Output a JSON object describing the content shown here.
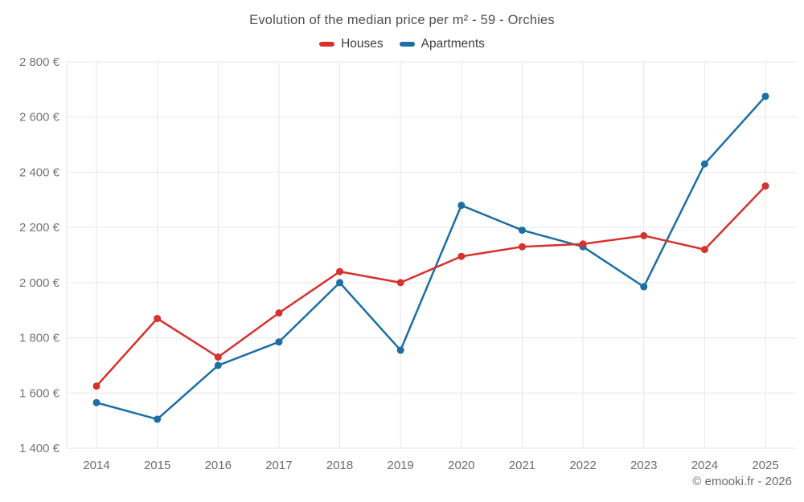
{
  "header": {
    "title": "Evolution of the median price per m² - 59 - Orchies"
  },
  "legend": {
    "items": [
      {
        "label": "Houses",
        "color": "#d7312e"
      },
      {
        "label": "Apartments",
        "color": "#1c6ea4"
      }
    ]
  },
  "footer": {
    "copyright": "© emooki.fr - 2026"
  },
  "chart_data": {
    "type": "line",
    "title": "Evolution of the median price per m² - 59 - Orchies",
    "categories": [
      "2014",
      "2015",
      "2016",
      "2017",
      "2018",
      "2019",
      "2020",
      "2021",
      "2022",
      "2023",
      "2024",
      "2025"
    ],
    "series": [
      {
        "name": "Houses",
        "color": "#d7312e",
        "values": [
          1625,
          1870,
          1730,
          1890,
          2040,
          2000,
          2095,
          2130,
          2140,
          2170,
          2120,
          2350
        ]
      },
      {
        "name": "Apartments",
        "color": "#1c6ea4",
        "values": [
          1565,
          1505,
          1700,
          1785,
          2000,
          1755,
          2280,
          2190,
          2130,
          1985,
          2430,
          2675
        ]
      }
    ],
    "xlabel": "",
    "ylabel": "",
    "ylim": [
      1400,
      2800
    ],
    "ytick_step": 200,
    "ytick_labels": [
      "1 400 €",
      "1 600 €",
      "1 800 €",
      "2 000 €",
      "2 200 €",
      "2 400 €",
      "2 600 €",
      "2 800 €"
    ],
    "currency_suffix": " €",
    "grid": true,
    "legend_position": "top",
    "marker_radius": 4.5
  }
}
